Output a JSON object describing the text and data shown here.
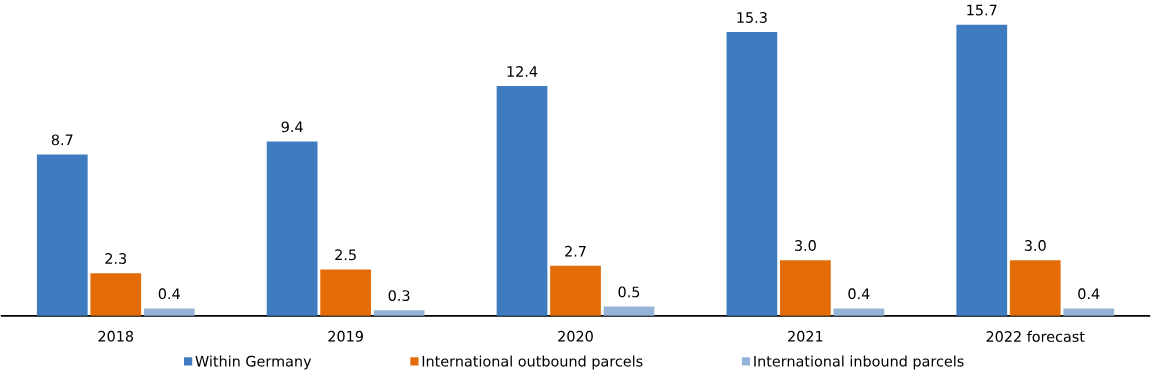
{
  "chart_data": {
    "type": "bar",
    "categories": [
      "2018",
      "2019",
      "2020",
      "2021",
      "2022 forecast"
    ],
    "series": [
      {
        "name": "Within Germany",
        "color": "#3f7cbf",
        "values": [
          8.7,
          9.4,
          12.4,
          15.3,
          15.7
        ],
        "value_labels": [
          "8.7",
          "9.4",
          "12.4",
          "15.3",
          "15.7"
        ]
      },
      {
        "name": "International outbound parcels",
        "color": "#e36c09",
        "values": [
          2.3,
          2.5,
          2.7,
          3.0,
          3.0
        ],
        "value_labels": [
          "2.3",
          "2.5",
          "2.7",
          "3.0",
          "3.0"
        ]
      },
      {
        "name": "International inbound parcels",
        "color": "#95b3d7",
        "values": [
          0.4,
          0.3,
          0.5,
          0.4,
          0.4
        ],
        "value_labels": [
          "0.4",
          "0.3",
          "0.5",
          "0.4",
          "0.4"
        ]
      }
    ],
    "legend": "bottom"
  }
}
